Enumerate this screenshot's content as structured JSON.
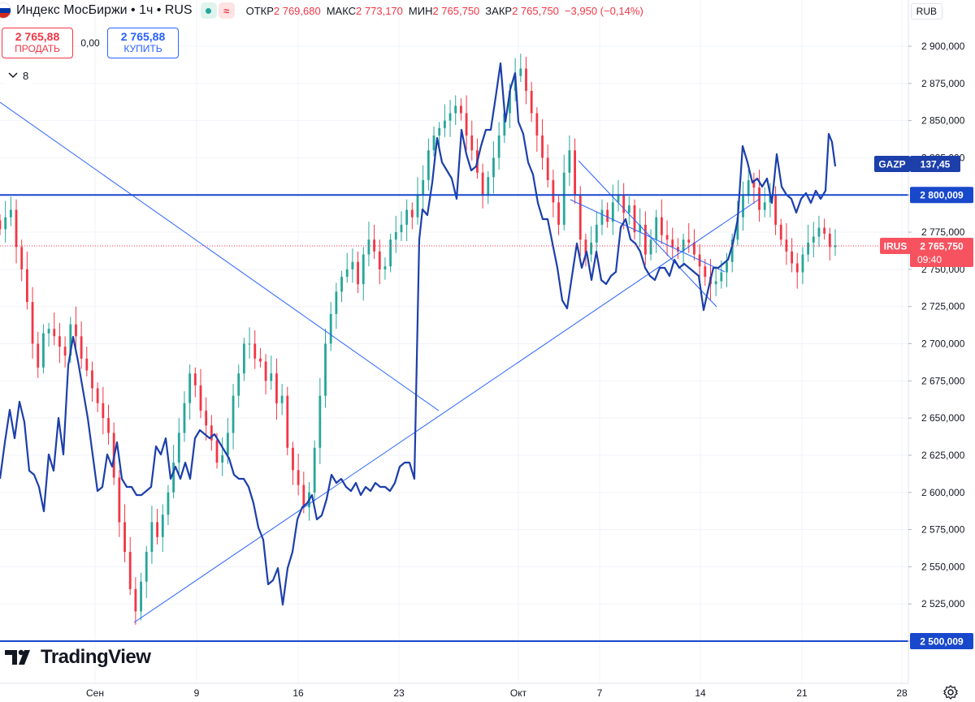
{
  "header": {
    "title": "Индекс МосБиржи • 1ч • RUS",
    "ohlc": [
      {
        "label": "ОТКР",
        "value": "2 769,680"
      },
      {
        "label": "МАКС",
        "value": "2 773,170"
      },
      {
        "label": "МИН",
        "value": "2 765,750"
      },
      {
        "label": "ЗАКР",
        "value": "2 765,750"
      },
      {
        "label": "",
        "value": "−3,950 (−0,14%)"
      }
    ],
    "flag_colors": [
      "#ffffff",
      "#0039a6",
      "#d52b1e"
    ]
  },
  "trade": {
    "sell_price": "2 765,88",
    "sell_label": "ПРОДАТЬ",
    "spread": "0,00",
    "buy_price": "2 765,88",
    "buy_label": "КУПИТЬ"
  },
  "indicators_collapsed": {
    "count": "8"
  },
  "price_scale": {
    "currency": "RUB",
    "ticks": [
      "2 900,000",
      "2 875,000",
      "2 850,000",
      "2 825,000",
      "2 800,000",
      "2 775,000",
      "2 750,000",
      "2 725,000",
      "2 700,000",
      "2 675,000",
      "2 650,000",
      "2 625,000",
      "2 600,000",
      "2 575,000",
      "2 550,000",
      "2 525,000",
      "2 500,000"
    ]
  },
  "time_scale": {
    "ticks": [
      "Сен",
      "9",
      "16",
      "23",
      "Окт",
      "7",
      "14",
      "21",
      "28"
    ]
  },
  "labels": {
    "gazp_symbol": "GAZP",
    "gazp_value": "137,45",
    "irus_symbol": "IRUS",
    "irus_value": "2 765,750",
    "irus_time": "09:40",
    "level_top": "2 800,009",
    "level_bottom": "2 500,009"
  },
  "brand": {
    "name": "TradingView"
  },
  "colors": {
    "up": "#26a69a",
    "down": "#f23645",
    "compare_line": "#1c3faa",
    "trend_line": "#2962ff",
    "level_line": "#1848cc",
    "text": "#131722",
    "grid": "#f0f3fa"
  },
  "chart_data": {
    "type": "candlestick",
    "title": "Индекс МосБиржи • 1ч • RUS",
    "ylim": [
      2500,
      2912
    ],
    "last_price": 2765.75,
    "horizontal_levels": [
      2800.009,
      2500.009
    ],
    "candles_close": [
      2777,
      2785,
      2790,
      2765,
      2750,
      2728,
      2700,
      2684,
      2707,
      2710,
      2705,
      2698,
      2692,
      2713,
      2705,
      2690,
      2682,
      2670,
      2660,
      2650,
      2640,
      2610,
      2580,
      2560,
      2535,
      2520,
      2540,
      2560,
      2580,
      2570,
      2585,
      2600,
      2620,
      2640,
      2660,
      2680,
      2672,
      2655,
      2645,
      2635,
      2620,
      2625,
      2640,
      2665,
      2680,
      2700,
      2700,
      2690,
      2688,
      2675,
      2680,
      2660,
      2665,
      2630,
      2615,
      2605,
      2590,
      2600,
      2630,
      2665,
      2700,
      2720,
      2735,
      2745,
      2750,
      2755,
      2740,
      2760,
      2770,
      2762,
      2750,
      2752,
      2770,
      2775,
      2780,
      2790,
      2785,
      2800,
      2810,
      2830,
      2840,
      2845,
      2850,
      2855,
      2860,
      2855,
      2840,
      2830,
      2815,
      2800,
      2812,
      2825,
      2840,
      2855,
      2870,
      2880,
      2885,
      2870,
      2855,
      2840,
      2825,
      2810,
      2795,
      2780,
      2815,
      2830,
      2800,
      2770,
      2760,
      2768,
      2780,
      2790,
      2782,
      2795,
      2800,
      2788,
      2793,
      2775,
      2780,
      2760,
      2770,
      2785,
      2773,
      2770,
      2765,
      2762,
      2770,
      2768,
      2760,
      2752,
      2745,
      2740,
      2742,
      2748,
      2755,
      2770,
      2785,
      2800,
      2810,
      2805,
      2790,
      2795,
      2800,
      2780,
      2770,
      2762,
      2754,
      2748,
      2760,
      2768,
      2772,
      2778,
      2774,
      2765,
      2766
    ]
  },
  "compare_series": {
    "symbol": "GAZP",
    "last_value": 137.45
  }
}
